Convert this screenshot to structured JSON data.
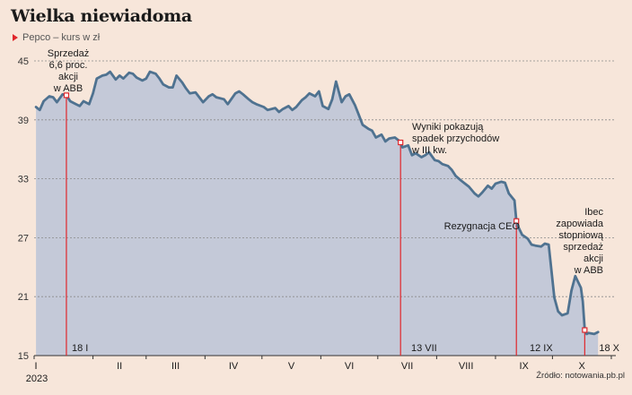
{
  "header": {
    "title": "Wielka niewiadoma",
    "subtitle": "Pepco – kurs w zł"
  },
  "source": "Źródło: notowania.pb.pl",
  "colors": {
    "line": "#4f7290",
    "fill": "#c4c9d8",
    "marker": "#e0262b",
    "background": "#f7e6da"
  },
  "chart_data": {
    "type": "area",
    "ylim": [
      15,
      45
    ],
    "yticks": [
      "45",
      "39",
      "33",
      "27",
      "21",
      "15"
    ],
    "grid": true,
    "months": [
      "I",
      "II",
      "III",
      "IV",
      "V",
      "VI",
      "VII",
      "VIII",
      "IX",
      "X"
    ],
    "year_label": "2023",
    "series": [
      {
        "x": [
          "2023-01-02",
          "2023-01-04",
          "2023-01-06",
          "2023-01-09",
          "2023-01-11",
          "2023-01-13",
          "2023-01-16",
          "2023-01-18",
          "2023-01-20",
          "2023-01-23",
          "2023-01-25",
          "2023-01-27",
          "2023-01-30",
          "2023-02-01",
          "2023-02-03",
          "2023-02-06",
          "2023-02-08",
          "2023-02-10",
          "2023-02-13",
          "2023-02-15",
          "2023-02-17",
          "2023-02-20",
          "2023-02-22",
          "2023-02-24",
          "2023-02-27",
          "2023-03-01",
          "2023-03-03",
          "2023-03-06",
          "2023-03-08",
          "2023-03-10",
          "2023-03-13",
          "2023-03-15",
          "2023-03-17",
          "2023-03-20",
          "2023-03-22",
          "2023-03-24",
          "2023-03-27",
          "2023-03-29",
          "2023-03-31",
          "2023-04-03",
          "2023-04-05",
          "2023-04-07",
          "2023-04-11",
          "2023-04-13",
          "2023-04-17",
          "2023-04-19",
          "2023-04-21",
          "2023-04-24",
          "2023-04-26",
          "2023-04-28",
          "2023-05-02",
          "2023-05-04",
          "2023-05-08",
          "2023-05-10",
          "2023-05-12",
          "2023-05-15",
          "2023-05-17",
          "2023-05-19",
          "2023-05-22",
          "2023-05-24",
          "2023-05-26",
          "2023-05-29",
          "2023-05-31",
          "2023-06-02",
          "2023-06-05",
          "2023-06-07",
          "2023-06-09",
          "2023-06-12",
          "2023-06-14",
          "2023-06-16",
          "2023-06-19",
          "2023-06-21",
          "2023-06-23",
          "2023-06-26",
          "2023-06-28",
          "2023-06-30",
          "2023-07-03",
          "2023-07-05",
          "2023-07-07",
          "2023-07-10",
          "2023-07-12",
          "2023-07-13",
          "2023-07-14",
          "2023-07-17",
          "2023-07-19",
          "2023-07-21",
          "2023-07-24",
          "2023-07-26",
          "2023-07-28",
          "2023-07-31",
          "2023-08-02",
          "2023-08-04",
          "2023-08-07",
          "2023-08-09",
          "2023-08-11",
          "2023-08-14",
          "2023-08-16",
          "2023-08-18",
          "2023-08-21",
          "2023-08-23",
          "2023-08-25",
          "2023-08-28",
          "2023-08-30",
          "2023-09-01",
          "2023-09-04",
          "2023-09-06",
          "2023-09-08",
          "2023-09-11",
          "2023-09-12",
          "2023-09-13",
          "2023-09-15",
          "2023-09-18",
          "2023-09-20",
          "2023-09-22",
          "2023-09-25",
          "2023-09-27",
          "2023-09-29",
          "2023-10-02",
          "2023-10-04",
          "2023-10-06",
          "2023-10-09",
          "2023-10-11",
          "2023-10-13",
          "2023-10-16",
          "2023-10-17",
          "2023-10-18",
          "2023-10-19",
          "2023-10-20",
          "2023-10-23",
          "2023-10-25"
        ],
        "y": [
          40.3,
          40.0,
          40.9,
          41.4,
          41.3,
          40.8,
          41.6,
          41.5,
          40.9,
          40.6,
          40.4,
          40.9,
          40.6,
          41.7,
          43.2,
          43.5,
          43.6,
          43.9,
          43.1,
          43.5,
          43.2,
          43.8,
          43.7,
          43.3,
          43.0,
          43.2,
          43.9,
          43.7,
          43.2,
          42.6,
          42.3,
          42.3,
          43.5,
          42.8,
          42.2,
          41.7,
          41.8,
          41.3,
          40.8,
          41.4,
          41.6,
          41.3,
          41.1,
          40.6,
          41.7,
          41.9,
          41.6,
          41.1,
          40.8,
          40.6,
          40.3,
          40.0,
          40.2,
          39.8,
          40.1,
          40.4,
          40.0,
          40.3,
          41.0,
          41.3,
          41.7,
          41.4,
          41.9,
          40.4,
          40.1,
          41.1,
          42.9,
          40.8,
          41.4,
          41.6,
          40.5,
          39.5,
          38.5,
          38.1,
          37.9,
          37.2,
          37.5,
          36.8,
          37.1,
          37.2,
          36.9,
          36.7,
          36.2,
          36.4,
          35.4,
          35.6,
          35.2,
          35.4,
          35.7,
          34.9,
          34.8,
          34.5,
          34.3,
          33.9,
          33.3,
          32.8,
          32.5,
          32.2,
          31.5,
          31.2,
          31.6,
          32.3,
          32.0,
          32.5,
          32.7,
          32.6,
          31.5,
          30.8,
          28.7,
          28.1,
          27.3,
          26.9,
          26.3,
          26.2,
          26.1,
          26.4,
          26.3,
          20.9,
          19.5,
          19.1,
          19.3,
          21.6,
          23.1,
          21.9,
          20.5,
          17.6,
          17.2,
          17.3,
          17.2,
          17.4
        ]
      }
    ],
    "annotations": [
      {
        "date_label": "18 I",
        "text": [
          "Sprzedaż",
          "6,6 proc.",
          "akcji",
          "w ABB"
        ]
      },
      {
        "date_label": "13 VII",
        "text": [
          "Wyniki pokazują",
          "spadek przychodów",
          "w III kw."
        ]
      },
      {
        "date_label": "12 IX",
        "text": [
          "Rezygnacja CEO"
        ]
      },
      {
        "date_label": "18 X",
        "text": [
          "Ibec",
          "zapowiada",
          "stopniową",
          "sprzedaż",
          "akcji",
          "w ABB"
        ]
      }
    ]
  }
}
